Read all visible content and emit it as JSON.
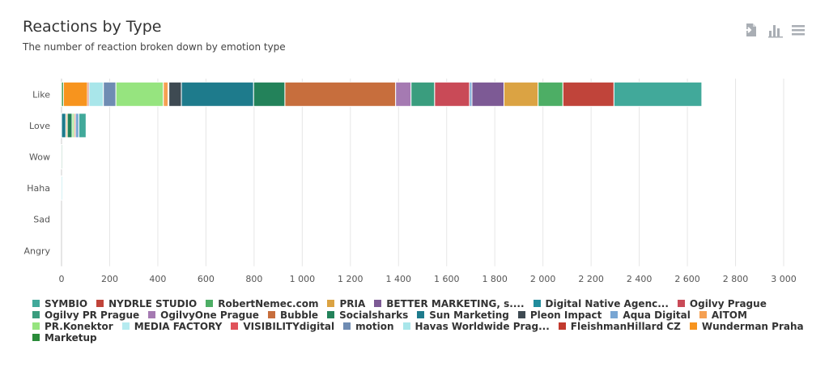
{
  "header": {
    "title": "Reactions by Type",
    "subtitle": "The number of reaction broken down by emotion type"
  },
  "toolbar": {
    "icons": [
      "export-icon",
      "chart-type-icon",
      "menu-icon"
    ],
    "color": "#a9aeb4"
  },
  "chart_data": {
    "type": "bar",
    "orientation": "horizontal",
    "stacked": true,
    "categories": [
      "Like",
      "Love",
      "Wow",
      "Haha",
      "Sad",
      "Angry"
    ],
    "xlim": [
      0,
      3000
    ],
    "xticks": [
      0,
      200,
      400,
      600,
      800,
      1000,
      1200,
      1400,
      1600,
      1800,
      2000,
      2200,
      2400,
      2600,
      2800,
      3000
    ],
    "xtick_labels": [
      "0",
      "200",
      "400",
      "600",
      "800",
      "1 000",
      "1 200",
      "1 400",
      "1 600",
      "1 800",
      "2 000",
      "2 200",
      "2 400",
      "2 600",
      "2 800",
      "3 000"
    ],
    "grid": "vertical",
    "legend_position": "bottom",
    "series": [
      {
        "name": "SYMBIO",
        "color": "#41a99a",
        "values": [
          0,
          0,
          0,
          0,
          0,
          0
        ]
      },
      {
        "name": "NYDRLE STUDIO",
        "color": "#c0443a",
        "values": [
          0,
          0,
          0,
          0,
          0,
          0
        ]
      },
      {
        "name": "RobertNemec.com",
        "color": "#4dae65",
        "values": [
          0,
          0,
          0,
          0,
          0,
          0
        ]
      },
      {
        "name": "PRIA",
        "color": "#dba343",
        "values": [
          0,
          0,
          0,
          0,
          0,
          0
        ]
      },
      {
        "name": "BETTER MARKETING, s....",
        "color": "#7d5a95",
        "values": [
          0,
          0,
          0,
          0,
          0,
          0
        ]
      },
      {
        "name": "Digital Native Agenc...",
        "color": "#218c9c",
        "values": [
          0,
          0,
          0,
          0,
          0,
          0
        ]
      },
      {
        "name": "Ogilvy Prague",
        "color": "#c94a57",
        "values": [
          0,
          0,
          0,
          0,
          0,
          0
        ]
      },
      {
        "name": "Ogilvy PR Prague",
        "color": "#3a9d7e",
        "values": [
          0,
          0,
          0,
          0,
          0,
          0
        ]
      },
      {
        "name": "OgilvyOne Prague",
        "color": "#a57ab2",
        "values": [
          0,
          0,
          0,
          0,
          0,
          0
        ]
      },
      {
        "name": "Bubble",
        "color": "#c76e3d",
        "values": [
          0,
          0,
          0,
          0,
          0,
          0
        ]
      },
      {
        "name": "Socialsharks",
        "color": "#23825a",
        "values": [
          0,
          0,
          0,
          0,
          0,
          0
        ]
      },
      {
        "name": "Sun Marketing",
        "color": "#1e7b8c",
        "values": [
          0,
          0,
          0,
          0,
          0,
          0
        ]
      },
      {
        "name": "Pleon Impact",
        "color": "#3e4a52",
        "values": [
          0,
          0,
          0,
          0,
          0,
          0
        ]
      },
      {
        "name": "Aqua Digital",
        "color": "#79a6d3",
        "values": [
          0,
          0,
          0,
          0,
          0,
          0
        ]
      },
      {
        "name": "AITOM",
        "color": "#f5a052",
        "values": [
          0,
          0,
          0,
          0,
          0,
          0
        ]
      },
      {
        "name": "PR.Konektor",
        "color": "#96e47f",
        "values": [
          0,
          0,
          0,
          0,
          0,
          0
        ]
      },
      {
        "name": "MEDIA FACTORY",
        "color": "#b5ebf0",
        "values": [
          0,
          0,
          0,
          0,
          0,
          0
        ]
      },
      {
        "name": "VISIBILITYdigital",
        "color": "#e0525a",
        "values": [
          0,
          0,
          0,
          0,
          0,
          0
        ]
      },
      {
        "name": "motion",
        "color": "#6f8cb3",
        "values": [
          0,
          0,
          0,
          0,
          0,
          0
        ]
      },
      {
        "name": "Havas Worldwide Prag...",
        "color": "#a9e6ea",
        "values": [
          0,
          0,
          0,
          0,
          0,
          0
        ]
      },
      {
        "name": "FleishmanHillard CZ",
        "color": "#c23a2e",
        "values": [
          0,
          0,
          0,
          0,
          0,
          0
        ]
      },
      {
        "name": "Wunderman Praha",
        "color": "#f7941e",
        "values": [
          0,
          0,
          0,
          0,
          0,
          0
        ]
      },
      {
        "name": "Marketup",
        "color": "#2a8c3a",
        "values": [
          0,
          0,
          0,
          0,
          0,
          0
        ]
      }
    ],
    "bars": [
      [
        {
          "color": "#2a8c3a",
          "value": 8
        },
        {
          "color": "#f7941e",
          "value": 100
        },
        {
          "color": "#c23a2e",
          "value": 6
        },
        {
          "color": "#a9e6ea",
          "value": 60
        },
        {
          "color": "#6f8cb3",
          "value": 52
        },
        {
          "color": "#96e47f",
          "value": 197
        },
        {
          "color": "#f5a052",
          "value": 20
        },
        {
          "color": "#79a6d3",
          "value": 3
        },
        {
          "color": "#3e4a52",
          "value": 52
        },
        {
          "color": "#1e7b8c",
          "value": 300
        },
        {
          "color": "#23825a",
          "value": 130
        },
        {
          "color": "#c76e3d",
          "value": 460
        },
        {
          "color": "#a57ab2",
          "value": 64
        },
        {
          "color": "#3a9d7e",
          "value": 98
        },
        {
          "color": "#c94a57",
          "value": 145
        },
        {
          "color": "#79a6d3",
          "value": 10
        },
        {
          "color": "#7d5a95",
          "value": 133
        },
        {
          "color": "#dba343",
          "value": 142
        },
        {
          "color": "#4dae65",
          "value": 103
        },
        {
          "color": "#c0443a",
          "value": 212
        },
        {
          "color": "#41a99a",
          "value": 365
        }
      ],
      [
        {
          "color": "#1e7b8c",
          "value": 18
        },
        {
          "color": "#f5a052",
          "value": 6
        },
        {
          "color": "#23825a",
          "value": 20
        },
        {
          "color": "#96e47f",
          "value": 8
        },
        {
          "color": "#c76e3d",
          "value": 6
        },
        {
          "color": "#79a6d3",
          "value": 14
        },
        {
          "color": "#41a99a",
          "value": 30
        }
      ],
      [
        {
          "color": "#23825a",
          "value": 4
        }
      ],
      [
        {
          "color": "#a9e6ea",
          "value": 5
        }
      ],
      [],
      []
    ]
  }
}
